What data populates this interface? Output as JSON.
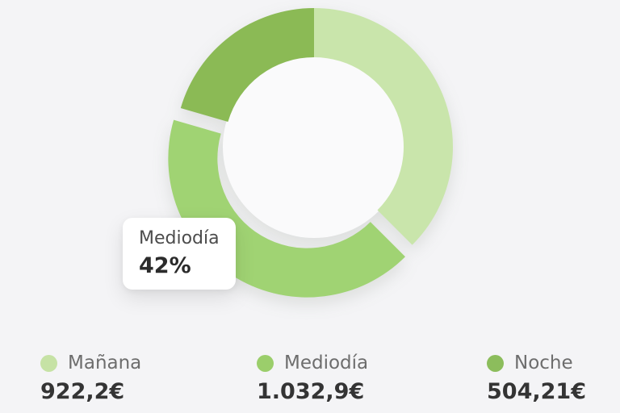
{
  "background_color": "#f4f4f6",
  "chart_data": {
    "type": "pie",
    "variant": "donut",
    "title": "",
    "categories": [
      "Mañana",
      "Mediodía",
      "Noche"
    ],
    "values": [
      922.2,
      1032.9,
      504.21
    ],
    "value_labels": [
      "922,2€",
      "1.032,9€",
      "504,21€"
    ],
    "percentages": [
      37.5,
      42.0,
      20.5
    ],
    "colors": [
      "#c9e5ab",
      "#a0d373",
      "#8bba55"
    ],
    "selected_index": 1,
    "start_angle_deg": 0,
    "direction": "clockwise",
    "legend_position": "bottom",
    "grid": false
  },
  "tooltip": {
    "label": "Mediodía",
    "value": "42%"
  },
  "legend": {
    "items": [
      {
        "label": "Mañana",
        "value": "922,2€",
        "color": "#c6e2a5"
      },
      {
        "label": "Mediodía",
        "value": "1.032,9€",
        "color": "#9bce6b"
      },
      {
        "label": "Noche",
        "value": "504,21€",
        "color": "#8cbd5c"
      }
    ]
  }
}
